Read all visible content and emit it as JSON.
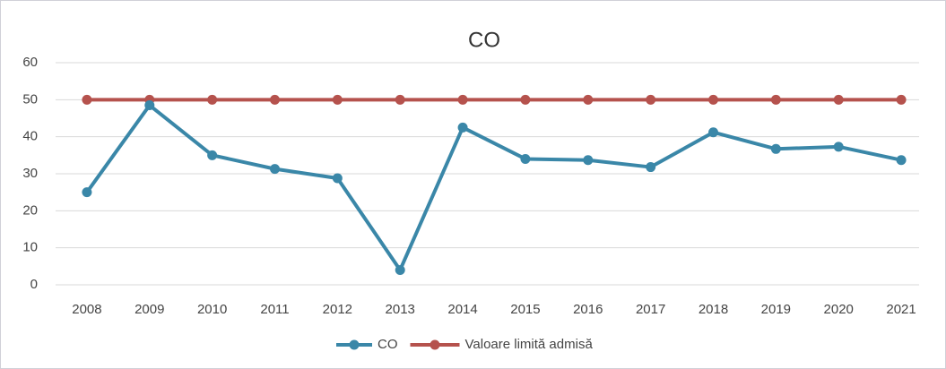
{
  "chart_data": {
    "type": "line",
    "title": "CO",
    "categories": [
      "2008",
      "2009",
      "2010",
      "2011",
      "2012",
      "2013",
      "2014",
      "2015",
      "2016",
      "2017",
      "2018",
      "2019",
      "2020",
      "2021"
    ],
    "series": [
      {
        "name": "CO",
        "color": "#3a87a8",
        "values": [
          25,
          48.5,
          35,
          31.3,
          28.8,
          4,
          42.5,
          34,
          33.7,
          31.8,
          41.2,
          36.7,
          37.3,
          33.7
        ]
      },
      {
        "name": "Valoare limită admisă",
        "color": "#b5524d",
        "values": [
          50,
          50,
          50,
          50,
          50,
          50,
          50,
          50,
          50,
          50,
          50,
          50,
          50,
          50
        ]
      }
    ],
    "ylim": [
      0,
      60
    ],
    "yticks": [
      0,
      10,
      20,
      30,
      40,
      50,
      60
    ],
    "grid": true,
    "legend": "bottom"
  }
}
